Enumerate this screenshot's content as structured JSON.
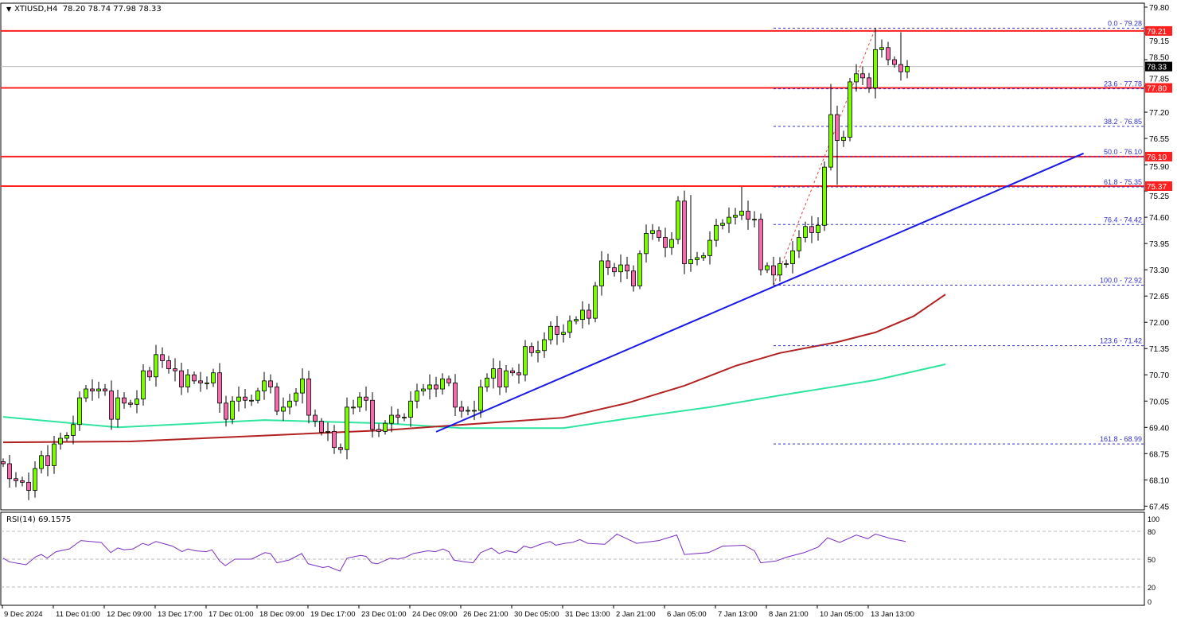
{
  "header": {
    "symbol": "XTIUSD,H4",
    "ohlc": "78.20 78.74 77.98 78.33",
    "icon": "triangle-down-icon"
  },
  "rsi_title": "RSI(14) 69.1575",
  "colors": {
    "bull": "#7CFC00",
    "bear": "#F26BAA",
    "hline": "#FF2020",
    "fib": "#3030D0",
    "trend": "#1A1AE6",
    "ma_slow": "#B22222",
    "ma_fast": "#2EE59D",
    "rsi": "#7B2FBE",
    "last": "#000000"
  },
  "chart_data": {
    "type": "candlestick",
    "title": "XTIUSD,H4",
    "ylim": [
      67.2,
      79.95
    ],
    "yticks": [
      "79.80",
      "79.15",
      "78.50",
      "77.85",
      "77.20",
      "76.55",
      "75.90",
      "75.25",
      "74.60",
      "73.95",
      "73.30",
      "72.65",
      "72.00",
      "71.35",
      "70.70",
      "70.05",
      "69.40",
      "68.75",
      "68.10",
      "67.45"
    ],
    "xtick_labels": [
      "9 Dec 2024",
      "11 Dec 01:00",
      "12 Dec 09:00",
      "13 Dec 17:00",
      "17 Dec 01:00",
      "18 Dec 09:00",
      "19 Dec 17:00",
      "23 Dec 01:00",
      "24 Dec 09:00",
      "26 Dec 21:00",
      "30 Dec 05:00",
      "31 Dec 13:00",
      "2 Jan 21:00",
      "6 Jan 05:00",
      "7 Jan 13:00",
      "8 Jan 21:00",
      "10 Jan 05:00",
      "13 Jan 13:00"
    ],
    "xtick_every_bars": 8,
    "first_open": 68.55,
    "closes": [
      68.5,
      68.13,
      68.08,
      68.04,
      67.84,
      68.38,
      68.7,
      68.45,
      68.99,
      69.13,
      69.2,
      69.47,
      70.13,
      70.35,
      70.3,
      70.35,
      70.3,
      69.6,
      70.13,
      70.0,
      69.97,
      70.1,
      70.8,
      70.65,
      71.2,
      71.05,
      70.85,
      70.8,
      70.4,
      70.7,
      70.55,
      70.5,
      70.5,
      70.75,
      70.0,
      69.6,
      70.05,
      70.15,
      70.07,
      70.07,
      70.3,
      70.55,
      70.4,
      69.8,
      69.9,
      70.05,
      70.25,
      70.6,
      69.7,
      69.55,
      69.28,
      69.3,
      68.9,
      68.85,
      69.9,
      69.9,
      70.15,
      70.07,
      69.35,
      69.3,
      69.5,
      69.7,
      69.65,
      69.65,
      70.05,
      70.3,
      70.35,
      70.45,
      70.35,
      70.6,
      70.5,
      69.9,
      69.8,
      69.82,
      69.82,
      70.4,
      70.62,
      70.85,
      70.4,
      70.8,
      70.75,
      70.7,
      71.4,
      71.25,
      71.3,
      71.57,
      71.9,
      71.7,
      71.75,
      72.03,
      72.07,
      72.3,
      72.1,
      72.9,
      73.52,
      73.35,
      73.25,
      73.42,
      73.27,
      72.9,
      73.7,
      74.2,
      74.27,
      74.1,
      73.85,
      74.05,
      75.0,
      73.45,
      73.55,
      73.6,
      73.65,
      74.03,
      74.4,
      74.45,
      74.6,
      74.65,
      74.75,
      74.55,
      74.55,
      73.3,
      73.4,
      73.17,
      73.45,
      73.45,
      73.77,
      74.1,
      74.37,
      74.22,
      74.4,
      75.84,
      77.14,
      76.5,
      76.58,
      77.95,
      78.15,
      78.05,
      77.8,
      78.75,
      78.8,
      78.5,
      78.38,
      78.2,
      78.33
    ],
    "extremes": {
      "121": {
        "low": 72.92
      },
      "137": {
        "high": 79.28
      },
      "130": {
        "high": 77.9
      },
      "131": {
        "low": 75.4
      },
      "108": {
        "high": 75.15
      },
      "116": {
        "high": 75.35
      },
      "141": {
        "high": 79.18
      }
    },
    "last_price": "78.33",
    "horizontal_lines": [
      {
        "price": 79.21,
        "label": "79.21"
      },
      {
        "price": 77.8,
        "label": "77.80"
      },
      {
        "price": 76.1,
        "label": "76.10"
      },
      {
        "price": 75.37,
        "label": "75.37"
      }
    ],
    "fibonacci": {
      "from_bar": 121,
      "to_bar": 137,
      "low": 72.92,
      "high": 79.28,
      "levels": [
        {
          "price": 79.28,
          "label": "0.0 - 79.28"
        },
        {
          "price": 77.78,
          "label": "23.6 - 77.78"
        },
        {
          "price": 76.85,
          "label": "38.2 - 76.85"
        },
        {
          "price": 76.1,
          "label": "50.0 - 76.10"
        },
        {
          "price": 75.35,
          "label": "61.8 - 75.35"
        },
        {
          "price": 74.42,
          "label": "76.4 - 74.42"
        },
        {
          "price": 72.92,
          "label": "100.0 - 72.92"
        },
        {
          "price": 71.42,
          "label": "123.6 - 71.42"
        },
        {
          "price": 68.99,
          "label": "161.8 - 68.99"
        }
      ]
    },
    "trendline": {
      "start": [
        68,
        69.29
      ],
      "end": [
        169.7,
        76.18
      ]
    },
    "ma_slow": [
      [
        0,
        69.03
      ],
      [
        20,
        69.05
      ],
      [
        40,
        69.19
      ],
      [
        60,
        69.33
      ],
      [
        69,
        69.43
      ],
      [
        88,
        69.64
      ],
      [
        98,
        70.0
      ],
      [
        107,
        70.43
      ],
      [
        115,
        70.92
      ],
      [
        122,
        71.24
      ],
      [
        131,
        71.51
      ],
      [
        137,
        71.75
      ],
      [
        143,
        72.15
      ],
      [
        148,
        72.69
      ]
    ],
    "ma_fast": [
      [
        0,
        69.66
      ],
      [
        18,
        69.4
      ],
      [
        41,
        69.58
      ],
      [
        60,
        69.5
      ],
      [
        72,
        69.38
      ],
      [
        88,
        69.38
      ],
      [
        99,
        69.64
      ],
      [
        111,
        69.9
      ],
      [
        122,
        70.19
      ],
      [
        137,
        70.57
      ],
      [
        148,
        70.96
      ]
    ],
    "rsi": {
      "levels": [
        "100",
        "80",
        "50",
        "20",
        "0"
      ],
      "points": [
        [
          0,
          51
        ],
        [
          1,
          47
        ],
        [
          3.6,
          44
        ],
        [
          5.1,
          52.5
        ],
        [
          6,
          55
        ],
        [
          6.9,
          51
        ],
        [
          8.3,
          58
        ],
        [
          10.4,
          61
        ],
        [
          12.2,
          70
        ],
        [
          13.7,
          69
        ],
        [
          15.4,
          68
        ],
        [
          16.9,
          57
        ],
        [
          18,
          62
        ],
        [
          19,
          60
        ],
        [
          20.4,
          61
        ],
        [
          21.9,
          67
        ],
        [
          22.8,
          65
        ],
        [
          24,
          69
        ],
        [
          26.6,
          64
        ],
        [
          28.1,
          58
        ],
        [
          29,
          61
        ],
        [
          30.2,
          59
        ],
        [
          31.9,
          58
        ],
        [
          32.8,
          60
        ],
        [
          34,
          48
        ],
        [
          34.9,
          43
        ],
        [
          36.4,
          50
        ],
        [
          39,
          50
        ],
        [
          41.1,
          57
        ],
        [
          42,
          56
        ],
        [
          43,
          46
        ],
        [
          44.9,
          49
        ],
        [
          46.9,
          56
        ],
        [
          47.9,
          45
        ],
        [
          50.2,
          41
        ],
        [
          51.1,
          42
        ],
        [
          52.9,
          37
        ],
        [
          54,
          51
        ],
        [
          56.1,
          54
        ],
        [
          57,
          53
        ],
        [
          57.9,
          46
        ],
        [
          58.8,
          45
        ],
        [
          60.8,
          51
        ],
        [
          62,
          50
        ],
        [
          63.2,
          52
        ],
        [
          64.4,
          56
        ],
        [
          66.7,
          59
        ],
        [
          67.9,
          58
        ],
        [
          69.1,
          61
        ],
        [
          70,
          58
        ],
        [
          70.8,
          49
        ],
        [
          72.6,
          47
        ],
        [
          73.8,
          46
        ],
        [
          75,
          57
        ],
        [
          76.7,
          62
        ],
        [
          77.9,
          56
        ],
        [
          79.1,
          59
        ],
        [
          80.6,
          57
        ],
        [
          81.8,
          64
        ],
        [
          82.9,
          62
        ],
        [
          84.4,
          66
        ],
        [
          85.9,
          69
        ],
        [
          86.8,
          65
        ],
        [
          88.2,
          67
        ],
        [
          89.4,
          68
        ],
        [
          90.6,
          71
        ],
        [
          91.8,
          67
        ],
        [
          94.5,
          66
        ],
        [
          96.4,
          77
        ],
        [
          99.5,
          67
        ],
        [
          103,
          70
        ],
        [
          105.8,
          76
        ],
        [
          107,
          55
        ],
        [
          110.8,
          57
        ],
        [
          113,
          64
        ],
        [
          116.4,
          65
        ],
        [
          118,
          59
        ],
        [
          119,
          46
        ],
        [
          121.4,
          48
        ],
        [
          123,
          52
        ],
        [
          125.8,
          57
        ],
        [
          128,
          63
        ],
        [
          129.5,
          73
        ],
        [
          131.4,
          68
        ],
        [
          134,
          76
        ],
        [
          135.8,
          72
        ],
        [
          137,
          77
        ],
        [
          139.5,
          72
        ],
        [
          141.75,
          69
        ]
      ]
    }
  }
}
